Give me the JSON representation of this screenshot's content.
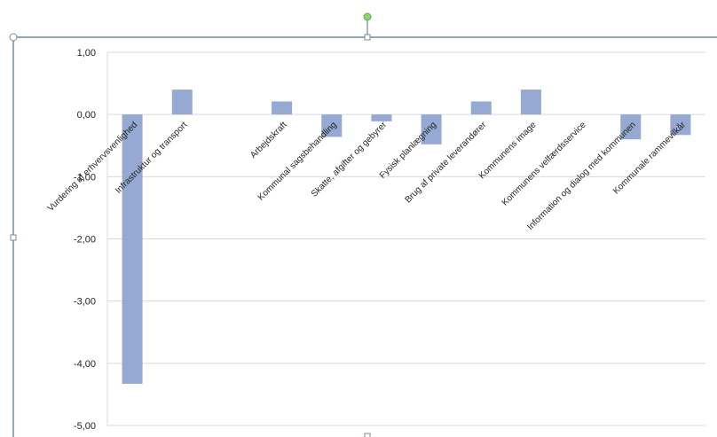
{
  "chart_data": {
    "type": "bar",
    "categories": [
      "Vurdering af erhvervsvenlighed",
      "Infrastruktur og transport",
      "",
      "Arbejdskraft",
      "Kommunal sagsbehandling",
      "Skatte, afgifter og gebyrer",
      "Fysisk planlægning",
      "Brug af private leverandører",
      "Kommunens image",
      "Kommunens velfærdsservice",
      "Information og dialog med kommunen",
      "Kommunale rammevilkår"
    ],
    "values": [
      -4.33,
      0.4,
      0,
      0.21,
      -0.36,
      -0.11,
      -0.48,
      0.21,
      0.4,
      0,
      -0.4,
      -0.33
    ],
    "ylim": [
      -5,
      1
    ],
    "yticks": [
      "1,00",
      "0,00",
      "-1,00",
      "-2,00",
      "-3,00",
      "-4,00",
      "-5,00"
    ],
    "grid": true,
    "bar_color": "#95a9d2",
    "grid_color": "#d9d9d9",
    "selection_color": "#4a7391",
    "handle_color": "#8fd16a"
  }
}
